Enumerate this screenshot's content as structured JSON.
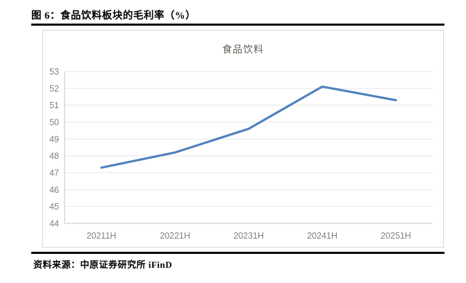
{
  "figure": {
    "title": "图 6：食品饮料板块的毛利率（%）",
    "source_label": "资料来源：中原证券研究所  iFinD"
  },
  "chart_data": {
    "type": "line",
    "title": "",
    "legend": [
      "食品饮料"
    ],
    "legend_position": "top-center",
    "categories": [
      "20211H",
      "20221H",
      "20231H",
      "20241H",
      "20251H"
    ],
    "series": [
      {
        "name": "食品饮料",
        "values": [
          47.3,
          48.2,
          49.6,
          52.1,
          51.3
        ]
      }
    ],
    "ylabel": "",
    "xlabel": "",
    "ylim": [
      44,
      53
    ],
    "ytick_step": 1,
    "grid": true,
    "colors": {
      "line": "#4F81BD",
      "gridline": "#e4e4e4",
      "axis_line": "#c6c6c6",
      "axis_text": "#7f7f7f",
      "legend_text": "#605b52",
      "frame_border": "#d9d9d9"
    }
  }
}
